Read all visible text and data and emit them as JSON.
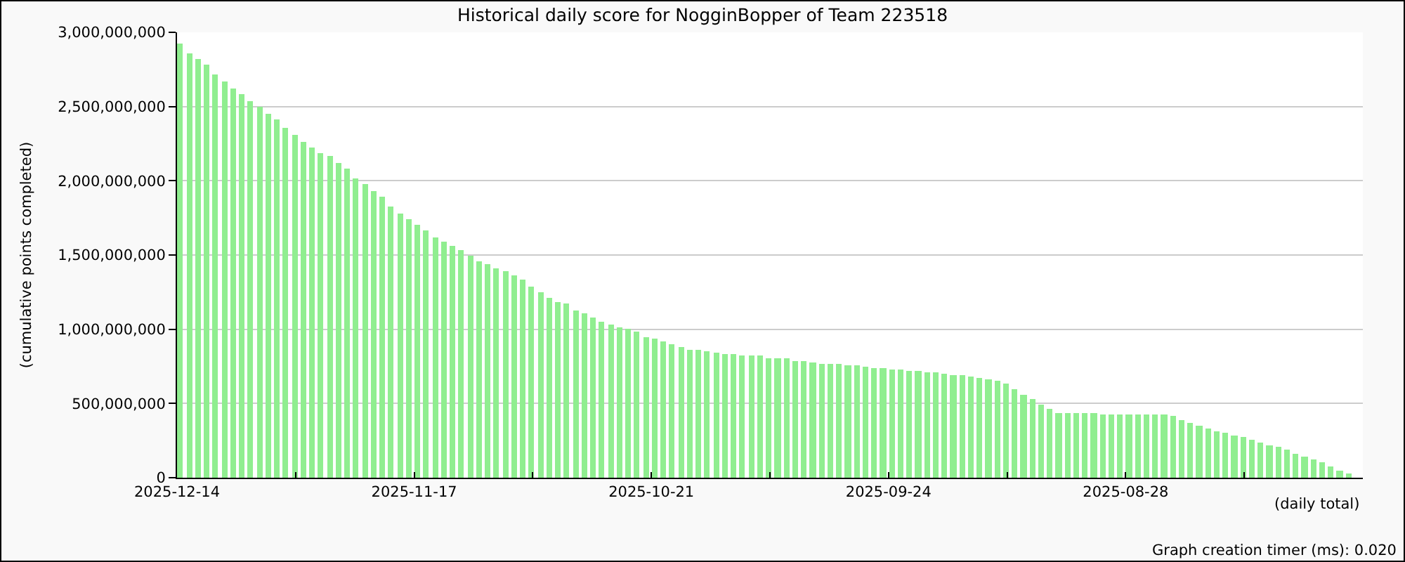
{
  "chart_data": {
    "type": "bar",
    "title": "Historical daily score for NogginBopper of Team 223518",
    "xlabel": "(daily total)",
    "ylabel": "(cumulative points completed)",
    "annotations": [
      "Graph creation timer (ms): 0.020"
    ],
    "color": "#90ee90",
    "grid": "y",
    "xlim": [
      "2025-12-14",
      "2025-08-01"
    ],
    "xticks": [
      "2025-12-14",
      {
        "value": "2025-11-30T12:00",
        "label": null
      },
      "2025-11-17",
      {
        "value": "2025-11-03T12:00",
        "label": null
      },
      "2025-10-21",
      {
        "value": "2025-10-07T12:00",
        "label": null
      },
      "2025-09-24",
      {
        "value": "2025-09-10T12:00",
        "label": null
      },
      "2025-08-28",
      {
        "value": "2025-08-14T12:00",
        "label": null
      },
      {
        "value": "2025-08-01",
        "label": null
      }
    ],
    "ylim": [
      0,
      3000000000
    ],
    "yticks": [
      {
        "value": 0,
        "label": "0"
      },
      {
        "value": 500000000,
        "label": "500,000,000"
      },
      {
        "value": 1000000000,
        "label": "1,000,000,000"
      },
      {
        "value": 1500000000,
        "label": "1,500,000,000"
      },
      {
        "value": 2000000000,
        "label": "2,000,000,000"
      },
      {
        "value": 2500000000,
        "label": "2,500,000,000"
      },
      {
        "value": 3000000000,
        "label": "3,000,000,000"
      }
    ],
    "x": [
      "2025-12-14",
      "2025-12-13",
      "2025-12-12",
      "2025-12-11",
      "2025-12-10",
      "2025-12-09",
      "2025-12-08",
      "2025-12-07",
      "2025-12-06",
      "2025-12-05",
      "2025-12-04",
      "2025-12-03",
      "2025-12-02",
      "2025-12-01",
      "2025-11-30",
      "2025-11-29",
      "2025-11-28",
      "2025-11-27",
      "2025-11-26",
      "2025-11-25",
      "2025-11-24",
      "2025-11-23",
      "2025-11-22",
      "2025-11-21",
      "2025-11-20",
      "2025-11-19",
      "2025-11-18",
      "2025-11-17",
      "2025-11-16",
      "2025-11-15",
      "2025-11-14",
      "2025-11-13",
      "2025-11-12",
      "2025-11-11",
      "2025-11-10",
      "2025-11-09",
      "2025-11-08",
      "2025-11-07",
      "2025-11-06",
      "2025-11-05",
      "2025-11-04",
      "2025-11-03",
      "2025-11-02",
      "2025-11-01",
      "2025-10-31",
      "2025-10-30",
      "2025-10-29",
      "2025-10-28",
      "2025-10-27",
      "2025-10-26",
      "2025-10-25",
      "2025-10-24",
      "2025-10-23",
      "2025-10-22",
      "2025-10-21",
      "2025-10-20",
      "2025-10-19",
      "2025-10-18",
      "2025-10-17",
      "2025-10-16",
      "2025-10-15",
      "2025-10-14",
      "2025-10-13",
      "2025-10-12",
      "2025-10-11",
      "2025-10-10",
      "2025-10-09",
      "2025-10-08",
      "2025-10-07",
      "2025-10-06",
      "2025-10-05",
      "2025-10-04",
      "2025-10-03",
      "2025-10-02",
      "2025-10-01",
      "2025-09-30",
      "2025-09-29",
      "2025-09-28",
      "2025-09-27",
      "2025-09-26",
      "2025-09-25",
      "2025-09-24",
      "2025-09-23",
      "2025-09-22",
      "2025-09-21",
      "2025-09-20",
      "2025-09-19",
      "2025-09-18",
      "2025-09-17",
      "2025-09-16",
      "2025-09-15",
      "2025-09-14",
      "2025-09-13",
      "2025-09-12",
      "2025-09-11",
      "2025-09-10",
      "2025-09-09",
      "2025-09-08",
      "2025-09-07",
      "2025-09-06",
      "2025-09-05",
      "2025-09-04",
      "2025-09-03",
      "2025-09-02",
      "2025-09-01",
      "2025-08-31",
      "2025-08-30",
      "2025-08-29",
      "2025-08-28",
      "2025-08-27",
      "2025-08-26",
      "2025-08-25",
      "2025-08-24",
      "2025-08-23",
      "2025-08-22",
      "2025-08-21",
      "2025-08-20",
      "2025-08-19",
      "2025-08-18",
      "2025-08-17",
      "2025-08-16",
      "2025-08-15",
      "2025-08-14",
      "2025-08-13",
      "2025-08-12",
      "2025-08-11",
      "2025-08-10",
      "2025-08-09",
      "2025-08-08",
      "2025-08-07",
      "2025-08-06",
      "2025-08-05",
      "2025-08-04",
      "2025-08-03"
    ],
    "values": [
      2920000000,
      2860000000,
      2820000000,
      2780000000,
      2720000000,
      2670000000,
      2620000000,
      2580000000,
      2540000000,
      2500000000,
      2450000000,
      2410000000,
      2360000000,
      2310000000,
      2260000000,
      2220000000,
      2190000000,
      2170000000,
      2120000000,
      2080000000,
      2020000000,
      1980000000,
      1930000000,
      1890000000,
      1830000000,
      1780000000,
      1740000000,
      1700000000,
      1670000000,
      1620000000,
      1590000000,
      1560000000,
      1530000000,
      1500000000,
      1460000000,
      1440000000,
      1410000000,
      1390000000,
      1360000000,
      1330000000,
      1290000000,
      1250000000,
      1210000000,
      1180000000,
      1170000000,
      1130000000,
      1110000000,
      1080000000,
      1050000000,
      1030000000,
      1010000000,
      1000000000,
      980000000,
      950000000,
      940000000,
      920000000,
      900000000,
      880000000,
      860000000,
      860000000,
      850000000,
      840000000,
      830000000,
      830000000,
      820000000,
      820000000,
      820000000,
      800000000,
      800000000,
      800000000,
      790000000,
      790000000,
      780000000,
      770000000,
      770000000,
      770000000,
      760000000,
      760000000,
      750000000,
      740000000,
      740000000,
      730000000,
      730000000,
      720000000,
      720000000,
      710000000,
      710000000,
      700000000,
      690000000,
      690000000,
      680000000,
      670000000,
      660000000,
      650000000,
      630000000,
      600000000,
      560000000,
      530000000,
      490000000,
      460000000,
      440000000,
      440000000,
      440000000,
      440000000,
      440000000,
      430000000,
      430000000,
      430000000,
      430000000,
      430000000,
      430000000,
      430000000,
      430000000,
      420000000,
      390000000,
      370000000,
      350000000,
      330000000,
      310000000,
      300000000,
      280000000,
      270000000,
      260000000,
      240000000,
      220000000,
      210000000,
      190000000,
      160000000,
      140000000,
      120000000,
      100000000,
      80000000,
      50000000,
      30000000
    ]
  }
}
